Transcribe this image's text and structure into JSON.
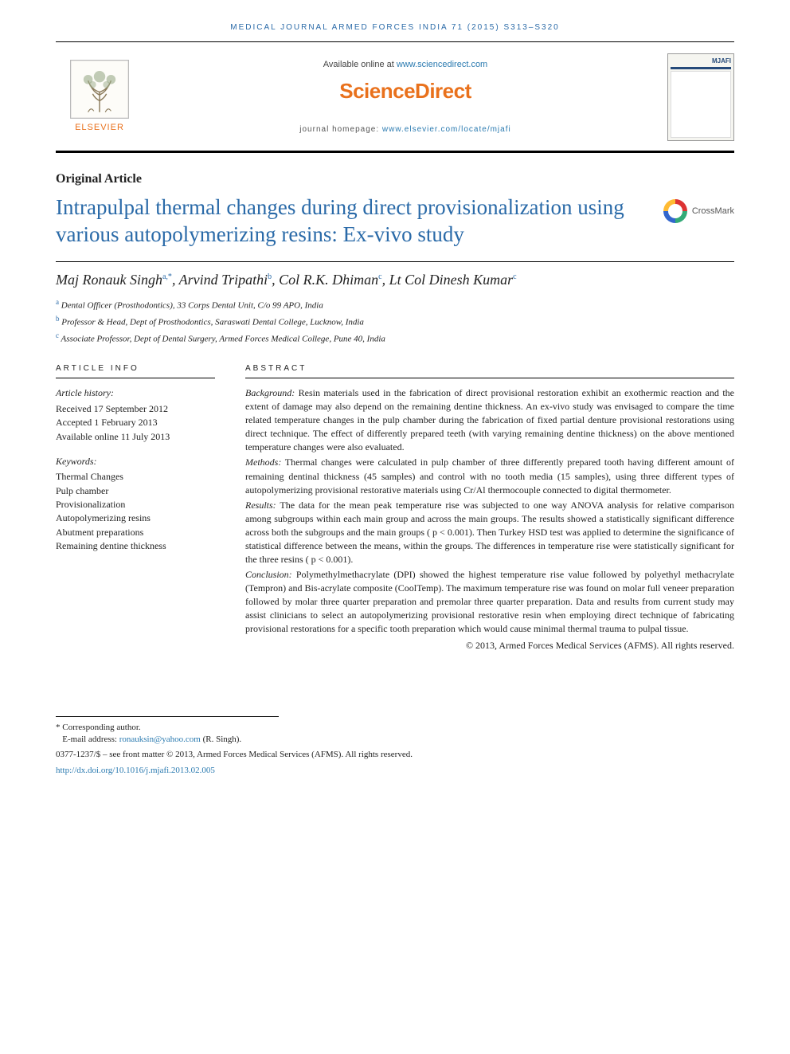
{
  "running_head": "MEDICAL JOURNAL ARMED FORCES INDIA 71 (2015) S313–S320",
  "header": {
    "available_prefix": "Available online at ",
    "available_url": "www.sciencedirect.com",
    "sd_brand": "ScienceDirect",
    "homepage_prefix": "journal homepage: ",
    "homepage_url": "www.elsevier.com/locate/mjafi",
    "elsevier_word": "ELSEVIER",
    "cover_title": "MJAFI"
  },
  "article_type": "Original Article",
  "title": "Intrapulpal thermal changes during direct provisionalization using various autopolymerizing resins: Ex-vivo study",
  "crossmark_label": "CrossMark",
  "authors_html": "Maj Ronauk Singh",
  "authors": [
    {
      "name": "Maj Ronauk Singh",
      "sup": "a,*"
    },
    {
      "name": "Arvind Tripathi",
      "sup": "b"
    },
    {
      "name": "Col R.K. Dhiman",
      "sup": "c"
    },
    {
      "name": "Lt Col Dinesh Kumar",
      "sup": "c"
    }
  ],
  "affiliations": [
    {
      "sup": "a",
      "text": "Dental Officer (Prosthodontics), 33 Corps Dental Unit, C/o 99 APO, India"
    },
    {
      "sup": "b",
      "text": "Professor & Head, Dept of Prosthodontics, Saraswati Dental College, Lucknow, India"
    },
    {
      "sup": "c",
      "text": "Associate Professor, Dept of Dental Surgery, Armed Forces Medical College, Pune 40, India"
    }
  ],
  "info": {
    "head": "ARTICLE INFO",
    "history_label": "Article history:",
    "history": [
      "Received 17 September 2012",
      "Accepted 1 February 2013",
      "Available online 11 July 2013"
    ],
    "keywords_label": "Keywords:",
    "keywords": [
      "Thermal Changes",
      "Pulp chamber",
      "Provisionalization",
      "Autopolymerizing resins",
      "Abutment preparations",
      "Remaining dentine thickness"
    ]
  },
  "abstract": {
    "head": "ABSTRACT",
    "sections": [
      {
        "label": "Background:",
        "text": "Resin materials used in the fabrication of direct provisional restoration exhibit an exothermic reaction and the extent of damage may also depend on the remaining dentine thickness. An ex-vivo study was envisaged to compare the time related temperature changes in the pulp chamber during the fabrication of fixed partial denture provisional restorations using direct technique. The effect of differently prepared teeth (with varying remaining dentine thickness) on the above mentioned temperature changes were also evaluated."
      },
      {
        "label": "Methods:",
        "text": "Thermal changes were calculated in pulp chamber of three differently prepared tooth having different amount of remaining dentinal thickness (45 samples) and control with no tooth media (15 samples), using three different types of autopolymerizing provisional restorative materials using Cr/Al thermocouple connected to digital thermometer."
      },
      {
        "label": "Results:",
        "text": "The data for the mean peak temperature rise was subjected to one way ANOVA analysis for relative comparison among subgroups within each main group and across the main groups. The results showed a statistically significant difference across both the subgroups and the main groups ( p < 0.001). Then Turkey HSD test was applied to determine the significance of statistical difference between the means, within the groups. The differences in temperature rise were statistically significant for the three resins ( p < 0.001)."
      },
      {
        "label": "Conclusion:",
        "text": "Polymethylmethacrylate (DPI) showed the highest temperature rise value followed by polyethyl methacrylate (Tempron) and Bis-acrylate composite (CoolTemp). The maximum temperature rise was found on molar full veneer preparation followed by molar three quarter preparation and premolar three quarter preparation. Data and results from current study may assist clinicians to select an autopolymerizing provisional restorative resin when employing direct technique of fabricating provisional restorations for a specific tooth preparation which would cause minimal thermal trauma to pulpal tissue."
      }
    ],
    "copyright": "© 2013, Armed Forces Medical Services (AFMS). All rights reserved."
  },
  "footnotes": {
    "corresponding": "* Corresponding author.",
    "email_label": "E-mail address: ",
    "email": "ronauksin@yahoo.com",
    "email_suffix": " (R. Singh).",
    "issn_line": "0377-1237/$ – see front matter © 2013, Armed Forces Medical Services (AFMS). All rights reserved.",
    "doi_url": "http://dx.doi.org/10.1016/j.mjafi.2013.02.005"
  },
  "colors": {
    "brand_orange": "#e9711c",
    "link_blue": "#2a7ab0",
    "title_blue": "#2a6aa8"
  }
}
